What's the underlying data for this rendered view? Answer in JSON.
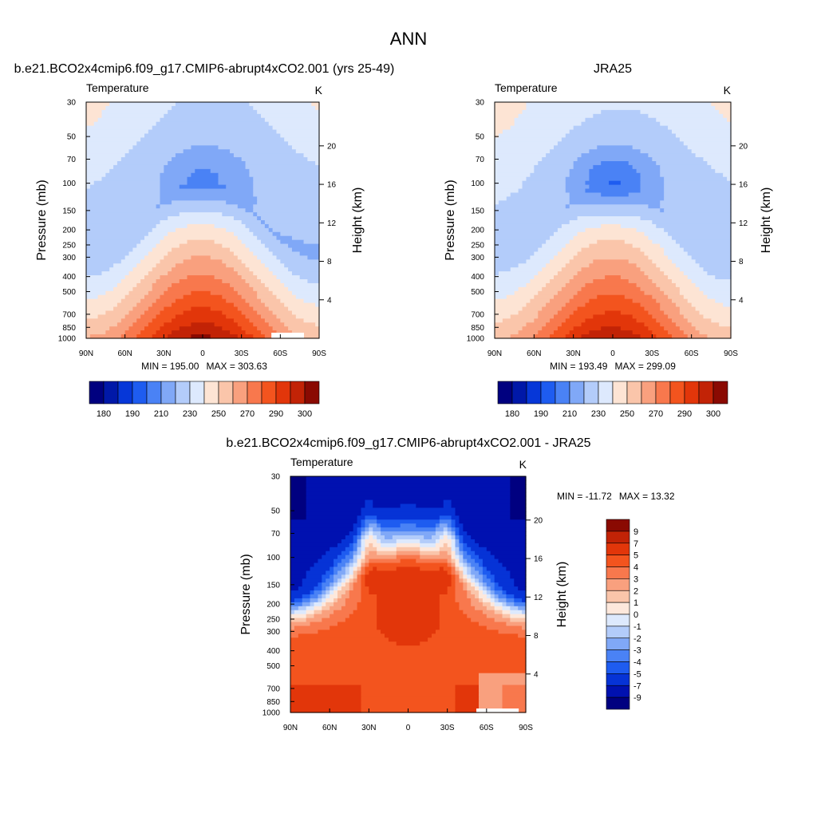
{
  "figure": {
    "title": "ANN"
  },
  "colors": {
    "abs_palette": [
      "#00007f",
      "#0018a8",
      "#0637d8",
      "#1e5cf0",
      "#4a82f5",
      "#80a8f7",
      "#b3ccfa",
      "#dde9fd",
      "#fde4d4",
      "#fac5aa",
      "#f9a07e",
      "#f8784d",
      "#f3541e",
      "#e2360a",
      "#c22306",
      "#8a0a02"
    ],
    "diff_palette": [
      "#000080",
      "#0011b0",
      "#0633d6",
      "#1e5cf0",
      "#4a82f5",
      "#80a8f7",
      "#b3ccfa",
      "#dde9fd",
      "#fde8dc",
      "#fac5aa",
      "#f9a07e",
      "#f8784d",
      "#f3541e",
      "#e2360a",
      "#c22306",
      "#8a0a02"
    ]
  },
  "chart_data": [
    {
      "type": "heatmap",
      "panel": "model",
      "title": "b.e21.BCO2x4cmip6.f09_g17.CMIP6-abrupt4xCO2.001 (yrs 25-49)",
      "left_label": "Temperature",
      "units": "K",
      "xlabel": "",
      "ylabel": "Pressure (mb)",
      "y2label": "Height (km)",
      "x_ticks": [
        "90N",
        "60N",
        "30N",
        "0",
        "30S",
        "60S",
        "90S"
      ],
      "y_ticks": [
        30,
        50,
        70,
        100,
        150,
        200,
        250,
        300,
        400,
        500,
        700,
        850,
        1000
      ],
      "y2_ticks": [
        4,
        8,
        12,
        16,
        20
      ],
      "stats": {
        "min_label": "MIN = 195.00",
        "max_label": "MAX = 303.63",
        "min": 195.0,
        "max": 303.63
      },
      "colorbar_labels": [
        "180",
        "190",
        "210",
        "230",
        "250",
        "270",
        "290",
        "300"
      ],
      "trop_t": 210,
      "cold_t": 202,
      "surf_eq": 303,
      "surf_pole": 250,
      "strat_pole": 214
    },
    {
      "type": "heatmap",
      "panel": "obs",
      "title": "JRA25",
      "left_label": "Temperature",
      "units": "K",
      "xlabel": "",
      "ylabel": "Pressure (mb)",
      "y2label": "Height (km)",
      "x_ticks": [
        "90N",
        "60N",
        "30N",
        "0",
        "30S",
        "60S",
        "90S"
      ],
      "y_ticks": [
        30,
        50,
        70,
        100,
        150,
        200,
        250,
        300,
        400,
        500,
        700,
        850,
        1000
      ],
      "y2_ticks": [
        4,
        8,
        12,
        16,
        20
      ],
      "stats": {
        "min_label": "MIN = 193.49",
        "max_label": "MAX = 299.09",
        "min": 193.49,
        "max": 299.09
      },
      "colorbar_labels": [
        "180",
        "190",
        "210",
        "230",
        "250",
        "270",
        "290",
        "300"
      ],
      "trop_t": 212,
      "cold_t": 196,
      "surf_eq": 299,
      "surf_pole": 248,
      "strat_pole": 214
    },
    {
      "type": "heatmap",
      "panel": "difference",
      "title": "b.e21.BCO2x4cmip6.f09_g17.CMIP6-abrupt4xCO2.001 - JRA25",
      "left_label": "Temperature",
      "units": "K",
      "xlabel": "",
      "ylabel": "Pressure (mb)",
      "y2label": "Height (km)",
      "x_ticks": [
        "90N",
        "60N",
        "30N",
        "0",
        "30S",
        "60S",
        "90S"
      ],
      "y_ticks": [
        30,
        50,
        70,
        100,
        150,
        200,
        250,
        300,
        400,
        500,
        700,
        850,
        1000
      ],
      "y2_ticks": [
        4,
        8,
        12,
        16,
        20
      ],
      "stats": {
        "min_label": "MIN = -11.72",
        "max_label": "MAX =  13.32",
        "min": -11.72,
        "max": 13.32
      },
      "colorbar_labels": [
        "9",
        "7",
        "5",
        "4",
        "3",
        "2",
        "1",
        "0",
        "-1",
        "-2",
        "-3",
        "-4",
        "-5",
        "-7",
        "-9"
      ]
    }
  ]
}
